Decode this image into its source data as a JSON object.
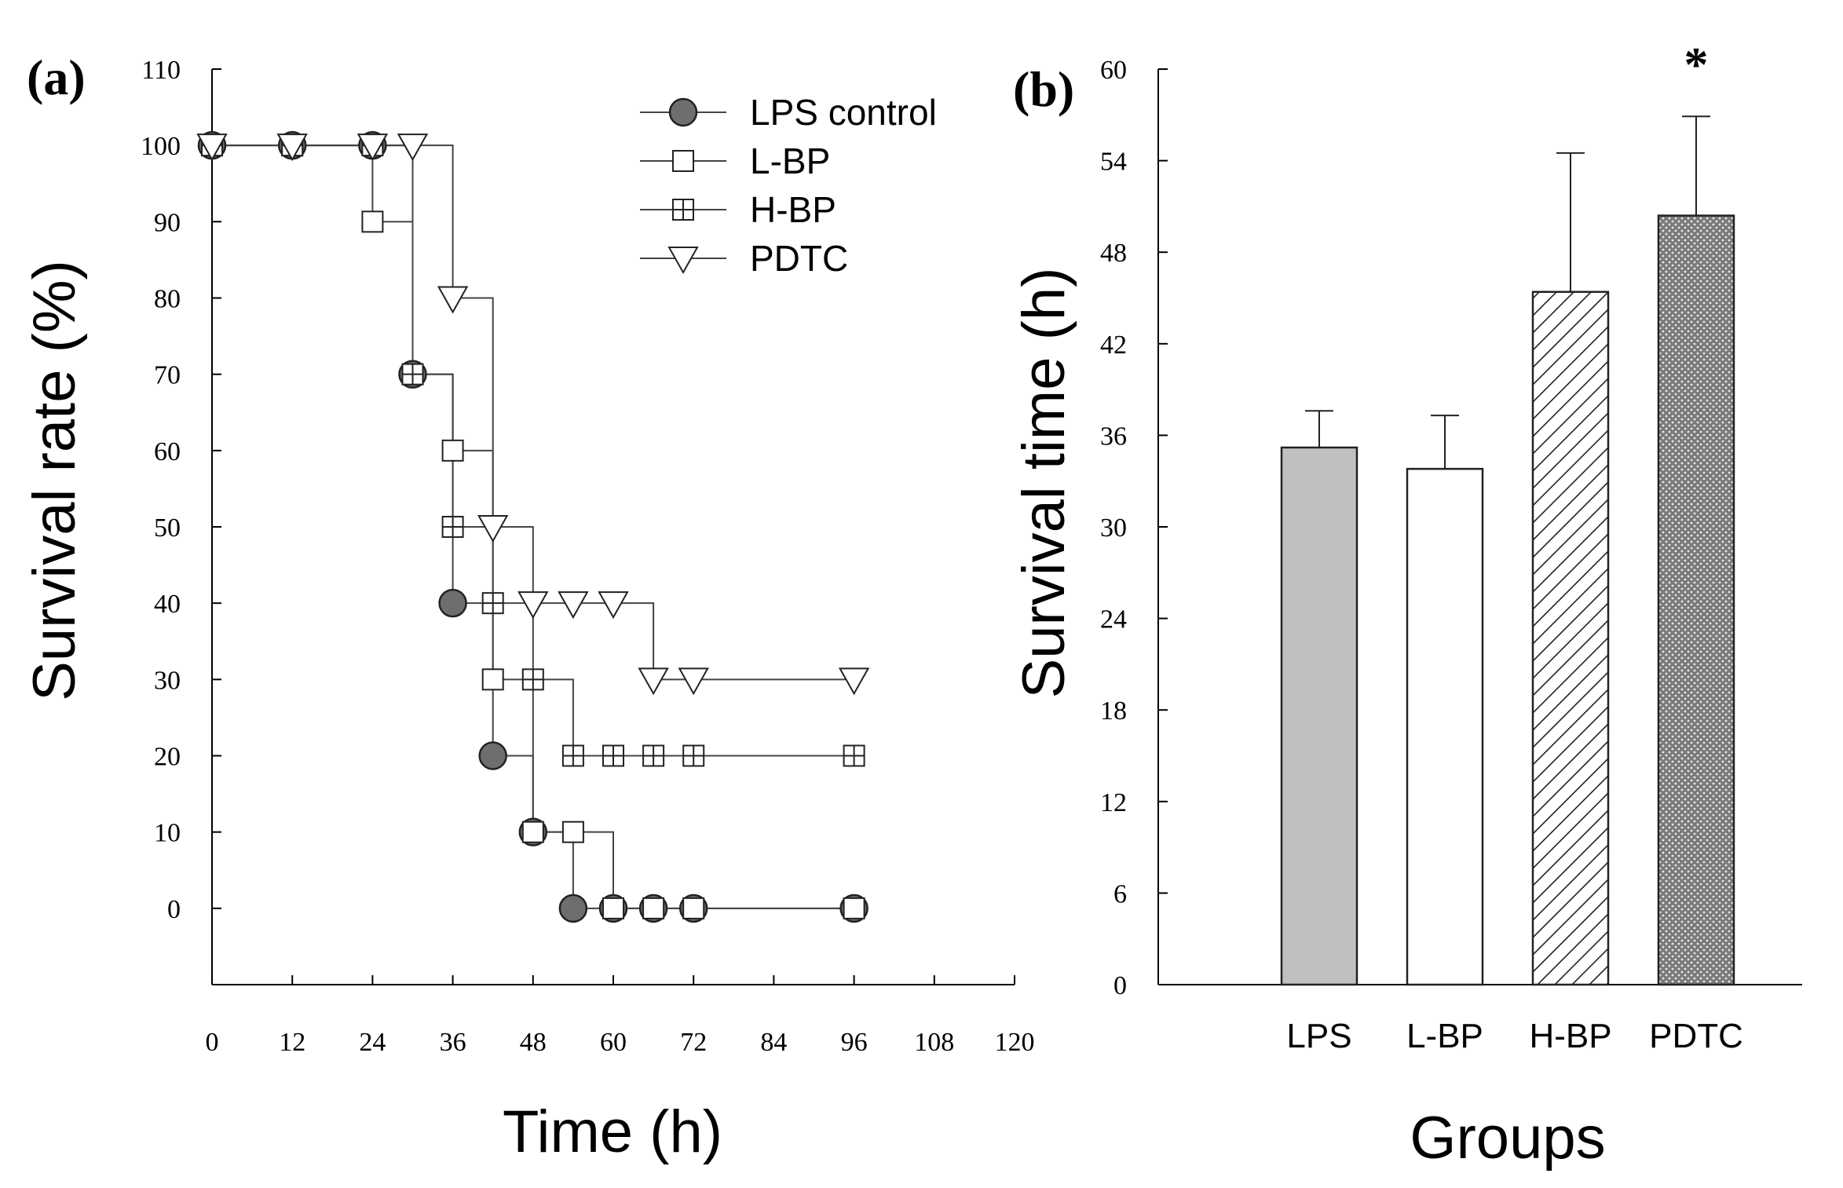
{
  "chart_data": [
    {
      "type": "line",
      "step": true,
      "panel_label": "(a)",
      "title": "",
      "xlabel": "Time (h)",
      "ylabel": "Survival rate (%)",
      "xlim": [
        0,
        120
      ],
      "ylim": [
        -10,
        110
      ],
      "xticks": [
        0,
        12,
        24,
        36,
        48,
        60,
        72,
        84,
        96,
        108,
        120
      ],
      "yticks": [
        0,
        10,
        20,
        30,
        40,
        50,
        60,
        70,
        80,
        90,
        100,
        110
      ],
      "grid": false,
      "legend": "top-right",
      "series": [
        {
          "name": "LPS control",
          "marker": "filled-circle",
          "x": [
            0,
            12,
            24,
            30,
            36,
            42,
            48,
            54,
            60,
            66,
            72,
            96
          ],
          "y": [
            100,
            100,
            100,
            70,
            40,
            20,
            10,
            0,
            0,
            0,
            0,
            0
          ]
        },
        {
          "name": "L-BP",
          "marker": "open-square",
          "x": [
            0,
            12,
            24,
            30,
            36,
            42,
            48,
            54,
            60,
            66,
            72,
            96
          ],
          "y": [
            100,
            100,
            90,
            70,
            60,
            30,
            10,
            10,
            0,
            0,
            0,
            0
          ]
        },
        {
          "name": "H-BP",
          "marker": "crossed-square",
          "x": [
            0,
            12,
            24,
            30,
            36,
            42,
            48,
            54,
            60,
            66,
            72,
            96
          ],
          "y": [
            100,
            100,
            100,
            70,
            50,
            40,
            30,
            20,
            20,
            20,
            20,
            20
          ]
        },
        {
          "name": "PDTC",
          "marker": "open-triangle-down",
          "x": [
            0,
            12,
            24,
            30,
            36,
            42,
            48,
            54,
            60,
            66,
            72,
            96
          ],
          "y": [
            100,
            100,
            100,
            100,
            80,
            50,
            40,
            40,
            40,
            30,
            30,
            30
          ]
        }
      ]
    },
    {
      "type": "bar",
      "panel_label": "(b)",
      "title": "",
      "xlabel": "Groups",
      "ylabel": "Survival time (h)",
      "ylim": [
        0,
        60
      ],
      "yticks": [
        0,
        6,
        12,
        18,
        24,
        30,
        36,
        42,
        48,
        54,
        60
      ],
      "grid": false,
      "categories": [
        "LPS",
        "L-BP",
        "H-BP",
        "PDTC"
      ],
      "values": [
        35.2,
        33.8,
        45.4,
        50.4
      ],
      "errors": [
        2.4,
        3.5,
        9.1,
        6.5
      ],
      "fills": [
        "solid-gray",
        "white",
        "diagonal-hatch",
        "stipple"
      ],
      "colors": {
        "solid-gray": "#c0c0c0",
        "stipple_base": "#7a7a7a",
        "stipple_dot": "#e8e8e8"
      },
      "significance": [
        "",
        "",
        "",
        "*"
      ]
    }
  ]
}
